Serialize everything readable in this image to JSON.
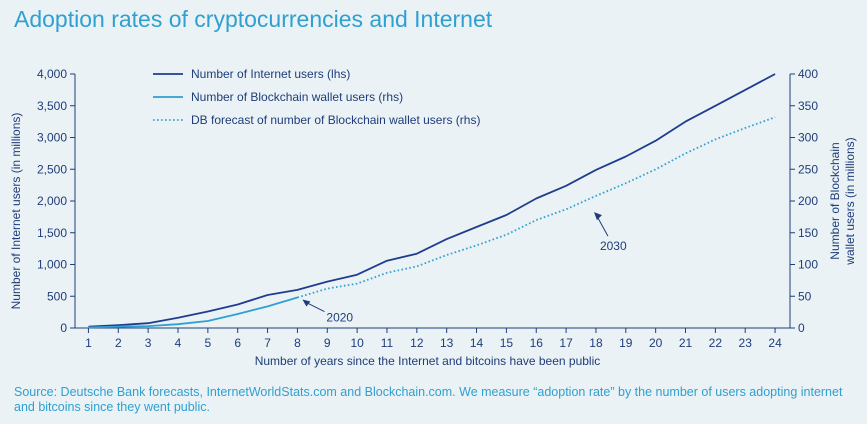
{
  "title": "Adoption rates of cryptocurrencies and Internet",
  "source": "Source: Deutsche Bank forecasts, InternetWorldStats.com and Blockchain.com. We measure “adoption rate” by the number of users adopting internet and bitcoins since they went public.",
  "colors": {
    "background": "#eaf2f5",
    "title": "#2fa0d0",
    "axis": "#1f3d7a",
    "internet": "#1f3d8f",
    "blockchain": "#2fa0d0",
    "forecast": "#2fa0d0"
  },
  "chart_data": {
    "type": "line",
    "x": [
      1,
      2,
      3,
      4,
      5,
      6,
      7,
      8,
      9,
      10,
      11,
      12,
      13,
      14,
      15,
      16,
      17,
      18,
      19,
      20,
      21,
      22,
      23,
      24
    ],
    "xlabel": "Number of years since the Internet and bitcoins have been public",
    "ylabel": "Number of Internet users (in millions)",
    "y2label_line1": "Number of Blockchain",
    "y2label_line2": "wallet users (in millions)",
    "ylim": [
      0,
      4000
    ],
    "y2lim": [
      0,
      400
    ],
    "yticks": [
      "0",
      "500",
      "1,000",
      "1,500",
      "2,000",
      "2,500",
      "3,000",
      "3,500",
      "4,000"
    ],
    "y2ticks": [
      "0",
      "50",
      "100",
      "150",
      "200",
      "250",
      "300",
      "350",
      "400"
    ],
    "xticks": [
      "1",
      "2",
      "3",
      "4",
      "5",
      "6",
      "7",
      "8",
      "9",
      "10",
      "11",
      "12",
      "13",
      "14",
      "15",
      "16",
      "17",
      "18",
      "19",
      "20",
      "21",
      "22",
      "23",
      "24"
    ],
    "legend_position": "top-left",
    "series": [
      {
        "name": "Number of Internet users (lhs)",
        "axis": "left",
        "style": "solid",
        "x": [
          1,
          2,
          3,
          4,
          5,
          6,
          7,
          8,
          9,
          10,
          11,
          12,
          13,
          14,
          15,
          16,
          17,
          18,
          19,
          20,
          21,
          22,
          23,
          24
        ],
        "values": [
          20,
          45,
          75,
          160,
          260,
          370,
          520,
          600,
          730,
          840,
          1060,
          1170,
          1400,
          1590,
          1780,
          2040,
          2240,
          2490,
          2700,
          2950,
          3250,
          3500,
          3750,
          4000
        ]
      },
      {
        "name": "Number of Blockchain wallet users (rhs)",
        "axis": "right",
        "style": "solid",
        "x": [
          1,
          2,
          3,
          4,
          5,
          6,
          7,
          8
        ],
        "values": [
          1,
          2,
          3,
          6,
          11,
          22,
          34,
          48
        ]
      },
      {
        "name": "DB forecast of number of Blockchain wallet users (rhs)",
        "axis": "right",
        "style": "dotted",
        "x": [
          8,
          9,
          10,
          11,
          12,
          13,
          14,
          15,
          16,
          17,
          18,
          19,
          20,
          21,
          22,
          23,
          24
        ],
        "values": [
          48,
          62,
          70,
          87,
          97,
          115,
          130,
          147,
          170,
          187,
          208,
          228,
          250,
          275,
          297,
          315,
          332
        ]
      }
    ],
    "annotations": [
      {
        "text": "2020",
        "x": 8,
        "axis": "right",
        "y": 48
      },
      {
        "text": "2030",
        "x": 18,
        "axis": "right",
        "y": 195
      }
    ]
  }
}
